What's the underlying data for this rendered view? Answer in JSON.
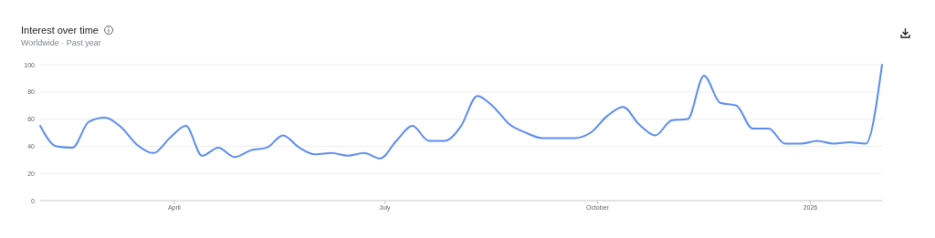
{
  "chart_data": {
    "type": "line",
    "title": "Interest over time",
    "subtitle": "Worldwide · Past year",
    "x": [
      "2025-02-02",
      "2025-02-09",
      "2025-02-16",
      "2025-02-23",
      "2025-03-02",
      "2025-03-09",
      "2025-03-16",
      "2025-03-23",
      "2025-03-30",
      "2025-04-06",
      "2025-04-13",
      "2025-04-20",
      "2025-04-27",
      "2025-05-04",
      "2025-05-11",
      "2025-05-18",
      "2025-05-25",
      "2025-06-01",
      "2025-06-08",
      "2025-06-15",
      "2025-06-22",
      "2025-06-29",
      "2025-07-06",
      "2025-07-13",
      "2025-07-20",
      "2025-07-27",
      "2025-08-03",
      "2025-08-10",
      "2025-08-17",
      "2025-08-24",
      "2025-08-31",
      "2025-09-07",
      "2025-09-14",
      "2025-09-21",
      "2025-09-28",
      "2025-10-05",
      "2025-10-12",
      "2025-10-19",
      "2025-10-26",
      "2025-11-02",
      "2025-11-09",
      "2025-11-16",
      "2025-11-23",
      "2025-11-30",
      "2025-12-07",
      "2025-12-14",
      "2025-12-21",
      "2025-12-28",
      "2026-01-04",
      "2026-01-11",
      "2026-01-18",
      "2026-01-25",
      "2026-02-01"
    ],
    "series": [
      {
        "color": "#5b8def",
        "values": [
          55,
          40,
          39,
          58,
          61,
          54,
          41,
          35,
          46,
          55,
          33,
          39,
          32,
          37,
          39,
          48,
          39,
          34,
          35,
          33,
          35,
          31,
          44,
          55,
          44,
          44,
          55,
          77,
          69,
          56,
          50,
          46,
          46,
          46,
          50,
          62,
          69,
          56,
          48,
          59,
          60,
          92,
          72,
          70,
          53,
          53,
          42,
          42,
          44,
          42,
          43,
          42,
          100
        ]
      }
    ],
    "xlim": [
      "2025-02-02",
      "2026-02-01"
    ],
    "xticks": [
      {
        "value": "2025-04-01",
        "label": "April"
      },
      {
        "value": "2025-07-01",
        "label": "July"
      },
      {
        "value": "2025-10-01",
        "label": "October"
      },
      {
        "value": "2026-01-01",
        "label": "2026"
      }
    ],
    "ylim": [
      0,
      100
    ],
    "yticks": [
      0,
      20,
      40,
      60,
      80,
      100
    ],
    "grid": "y",
    "marker": "none",
    "line_style": "solid"
  }
}
